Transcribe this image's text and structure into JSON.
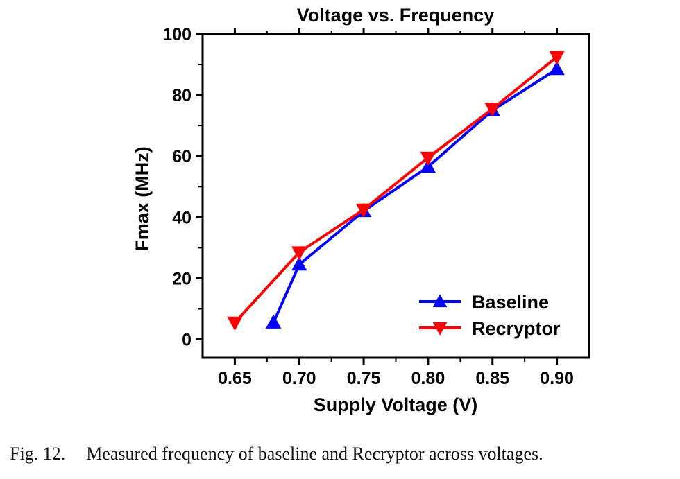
{
  "chart_data": {
    "type": "line",
    "title": "Voltage vs. Frequency",
    "xlabel": "Supply Voltage (V)",
    "ylabel": "Fmax (MHz)",
    "xlim": [
      0.625,
      0.925
    ],
    "ylim": [
      -6,
      100
    ],
    "xticks": [
      0.65,
      0.7,
      0.75,
      0.8,
      0.85,
      0.9
    ],
    "xtick_labels": [
      "0.65",
      "0.70",
      "0.75",
      "0.80",
      "0.85",
      "0.90"
    ],
    "yticks": [
      0,
      20,
      40,
      60,
      80,
      100
    ],
    "ytick_labels": [
      "0",
      "20",
      "40",
      "60",
      "80",
      "100"
    ],
    "legend_position": "bottom-right",
    "grid": false,
    "series": [
      {
        "name": "Baseline",
        "color": "#0000ff",
        "marker": "triangle-up",
        "x": [
          0.68,
          0.7,
          0.75,
          0.8,
          0.85,
          0.9
        ],
        "y": [
          5.5,
          24.5,
          42,
          56.5,
          75,
          88.5
        ]
      },
      {
        "name": "Recryptor",
        "color": "#ff0000",
        "marker": "triangle-down",
        "x": [
          0.65,
          0.7,
          0.75,
          0.8,
          0.85,
          0.9
        ],
        "y": [
          5.5,
          28.5,
          42.5,
          59.5,
          75.5,
          92.5
        ]
      }
    ]
  },
  "caption": {
    "figure_label": "Fig. 12.",
    "text": "Measured frequency of baseline and Recryptor across voltages."
  }
}
